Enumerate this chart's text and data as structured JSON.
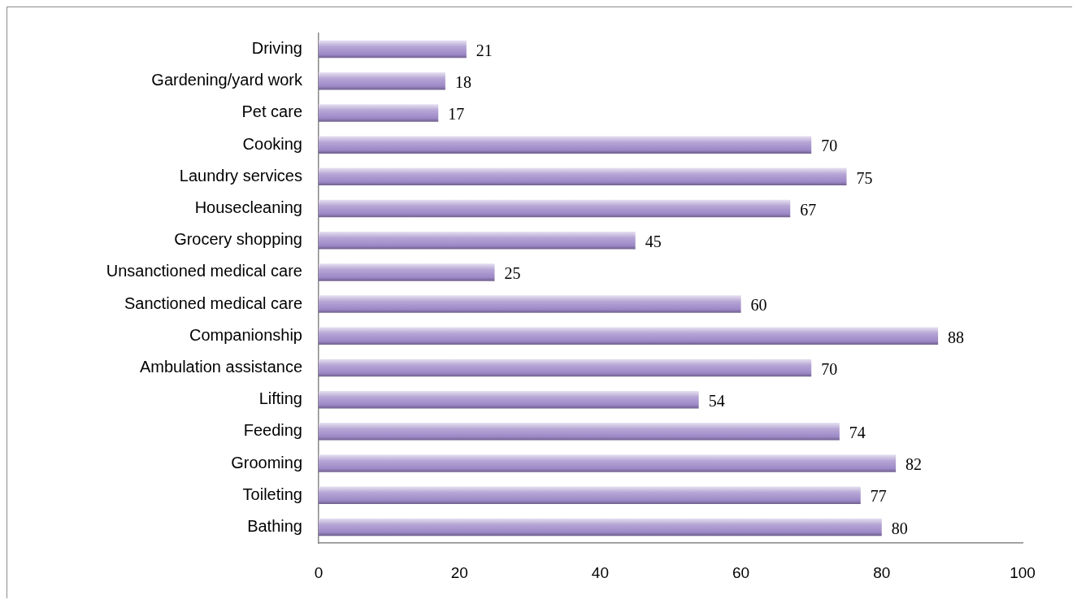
{
  "chart_data": {
    "type": "bar",
    "orientation": "horizontal",
    "categories": [
      "Driving",
      "Gardening/yard work",
      "Pet care",
      "Cooking",
      "Laundry services",
      "Housecleaning",
      "Grocery shopping",
      "Unsanctioned medical care",
      "Sanctioned medical care",
      "Companionship",
      "Ambulation assistance",
      "Lifting",
      "Feeding",
      "Grooming",
      "Toileting",
      "Bathing"
    ],
    "values": [
      21,
      18,
      17,
      70,
      75,
      67,
      45,
      25,
      60,
      88,
      70,
      54,
      74,
      82,
      77,
      80
    ],
    "color": "#9d88c7",
    "xlim": [
      0,
      100
    ],
    "xticks": [
      0,
      20,
      40,
      60,
      80,
      100
    ],
    "data_labels": true
  }
}
